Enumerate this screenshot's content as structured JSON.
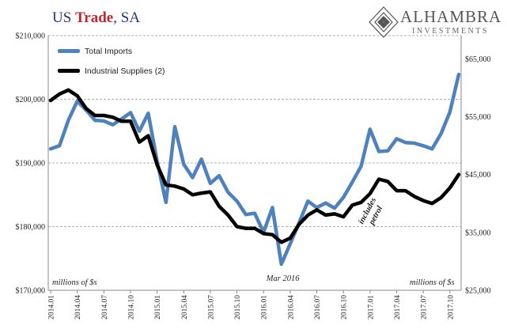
{
  "header": {
    "title_prefix": "US ",
    "title_accent": "Trade",
    "title_suffix": ", SA"
  },
  "logo": {
    "name": "ALHAMBRA",
    "subtitle": "INVESTMENTS",
    "icon": "alhambra-diamond-logo-icon"
  },
  "colors": {
    "total_imports": "#4f81bd",
    "industrial_supplies": "#000000",
    "grid": "#b0b0b0"
  },
  "chart_data": {
    "type": "line",
    "x": [
      "2014.01",
      "2014.02",
      "2014.03",
      "2014.04",
      "2014.05",
      "2014.06",
      "2014.07",
      "2014.08",
      "2014.09",
      "2014.10",
      "2014.11",
      "2014.12",
      "2015.01",
      "2015.02",
      "2015.03",
      "2015.04",
      "2015.05",
      "2015.06",
      "2015.07",
      "2015.08",
      "2015.09",
      "2015.10",
      "2015.11",
      "2015.12",
      "2016.01",
      "2016.02",
      "2016.03",
      "2016.04",
      "2016.05",
      "2016.06",
      "2016.07",
      "2016.08",
      "2016.09",
      "2016.10",
      "2016.11",
      "2016.12",
      "2017.01",
      "2017.02",
      "2017.03",
      "2017.04",
      "2017.05",
      "2017.06",
      "2017.07",
      "2017.08",
      "2017.09",
      "2017.10",
      "2017.11"
    ],
    "x_tick_labels": [
      "2014.01",
      "2014.04",
      "2014.07",
      "2014.10",
      "2015.01",
      "2015.04",
      "2015.07",
      "2015.10",
      "2016.01",
      "2016.04",
      "2016.07",
      "2016.10",
      "2017.01",
      "2017.04",
      "2017.07",
      "2017.10"
    ],
    "y_left": {
      "ticks": [
        "$170,000",
        "$180,000",
        "$190,000",
        "$200,000",
        "$210,000"
      ],
      "tick_values": [
        170000,
        180000,
        190000,
        200000,
        210000
      ],
      "ylim": [
        170000,
        210000
      ],
      "unit_note": "millions of $s"
    },
    "y_right": {
      "ticks": [
        "$25,000",
        "$35,000",
        "$45,000",
        "$55,000",
        "$65,000"
      ],
      "tick_values": [
        25000,
        35000,
        45000,
        55000,
        65000
      ],
      "ylim": [
        25000,
        69000
      ],
      "unit_note": "millions of $s"
    },
    "grid": true,
    "legend_position": "top-left",
    "series": [
      {
        "name": "Total Imports",
        "axis": "left",
        "values": [
          192200,
          192700,
          196700,
          199700,
          198300,
          196700,
          196600,
          196000,
          196900,
          197900,
          195000,
          197800,
          190300,
          183800,
          195700,
          189800,
          187700,
          190600,
          186800,
          188000,
          185400,
          184000,
          181900,
          182100,
          179100,
          183000,
          174100,
          177300,
          180600,
          184000,
          183000,
          183700,
          182900,
          184600,
          187000,
          189500,
          195300,
          191800,
          191900,
          193800,
          193200,
          193100,
          192700,
          192200,
          194600,
          198000,
          203900
        ]
      },
      {
        "name": "Industrial Supplies (2)",
        "axis": "right",
        "values": [
          57800,
          58900,
          59600,
          58600,
          56400,
          55200,
          55200,
          54900,
          54200,
          54200,
          50600,
          51700,
          46700,
          43200,
          43000,
          42500,
          41500,
          41800,
          42000,
          39500,
          38000,
          36000,
          35700,
          35700,
          34800,
          34600,
          33300,
          34000,
          36400,
          38000,
          38900,
          38000,
          38200,
          37700,
          39700,
          40200,
          41700,
          44200,
          43800,
          42200,
          42200,
          41200,
          40500,
          40000,
          41000,
          42700,
          45000
        ]
      }
    ],
    "annotations": [
      {
        "text": "Mar 2016",
        "x": "2016.03"
      },
      {
        "text": "includes petrol",
        "x": "2017.02"
      }
    ]
  }
}
